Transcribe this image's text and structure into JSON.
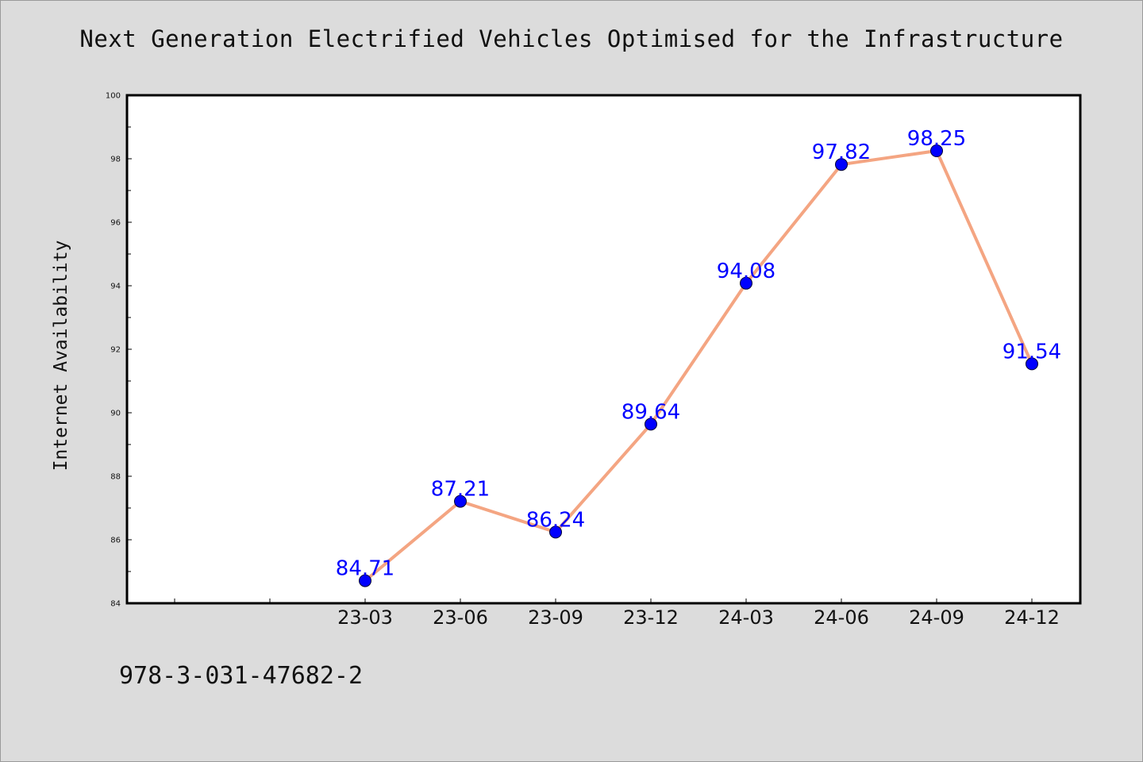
{
  "chart_data": {
    "type": "line",
    "title": "Next Generation Electrified Vehicles Optimised for the Infrastructure",
    "xlabel": "",
    "ylabel": "Internet Availability",
    "categories": [
      "23-03",
      "23-06",
      "23-09",
      "23-12",
      "24-03",
      "24-06",
      "24-09",
      "24-12"
    ],
    "series": [
      {
        "values": [
          84.71,
          87.21,
          86.24,
          89.64,
          94.08,
          97.82,
          98.25,
          91.54
        ]
      }
    ],
    "data_labels": [
      "84.71",
      "87.21",
      "86.24",
      "89.64",
      "94.08",
      "97.82",
      "98.25",
      "91.54"
    ],
    "ylim": [
      84,
      100
    ],
    "yticks": [
      84,
      86,
      88,
      90,
      92,
      94,
      96,
      98,
      100
    ],
    "grid": false,
    "colors": {
      "line": "#f4a582",
      "marker": "#0000ff",
      "data_label": "#0000ff",
      "plot_background": "#ffffff",
      "figure_background": "#dcdcdc"
    }
  },
  "footer_text": "978-3-031-47682-2"
}
